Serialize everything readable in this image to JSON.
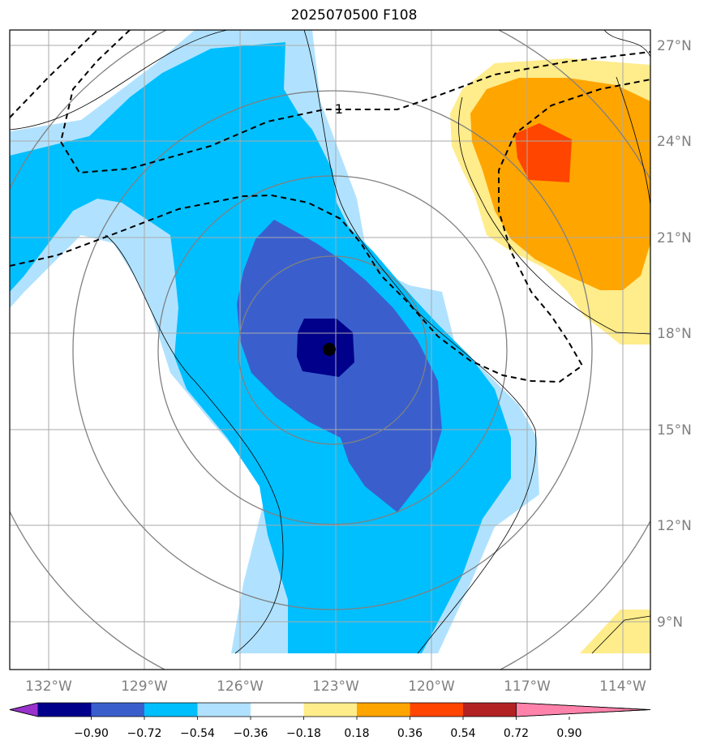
{
  "title": "2025070500 F108",
  "map": {
    "lon_range": [
      -133.2,
      -113.2
    ],
    "lat_range": [
      7.5,
      27.5
    ],
    "lon_ticks": [
      "132°W",
      "129°W",
      "126°W",
      "123°W",
      "120°W",
      "117°W",
      "114°W"
    ],
    "lat_ticks": [
      "27°N",
      "24°N",
      "21°N",
      "18°N",
      "15°N",
      "12°N",
      "9°N"
    ],
    "gridlines": true,
    "storm_center": {
      "lon": -123.1,
      "lat": 17.4
    },
    "contour_label": "1"
  },
  "colorbar": {
    "tick_labels": [
      "−0.90",
      "−0.72",
      "−0.54",
      "−0.36",
      "−0.18",
      "0.18",
      "0.36",
      "0.54",
      "0.72",
      "0.90"
    ],
    "colors": [
      "#9932cc",
      "#00008b",
      "#3a5fcd",
      "#00bfff",
      "#b0e2ff",
      "#ffffff",
      "#ffec8b",
      "#ffa500",
      "#ff4500",
      "#b22222",
      "#ff82ab"
    ],
    "extend": "both"
  },
  "fill_colors": {
    "very_light_blue": "#b0e2ff",
    "light_blue": "#00bfff",
    "mid_blue": "#3a5fcd",
    "dark_blue": "#00008b",
    "light_yellow": "#ffec8b",
    "orange": "#ffa500",
    "red_orange": "#ff4500"
  }
}
